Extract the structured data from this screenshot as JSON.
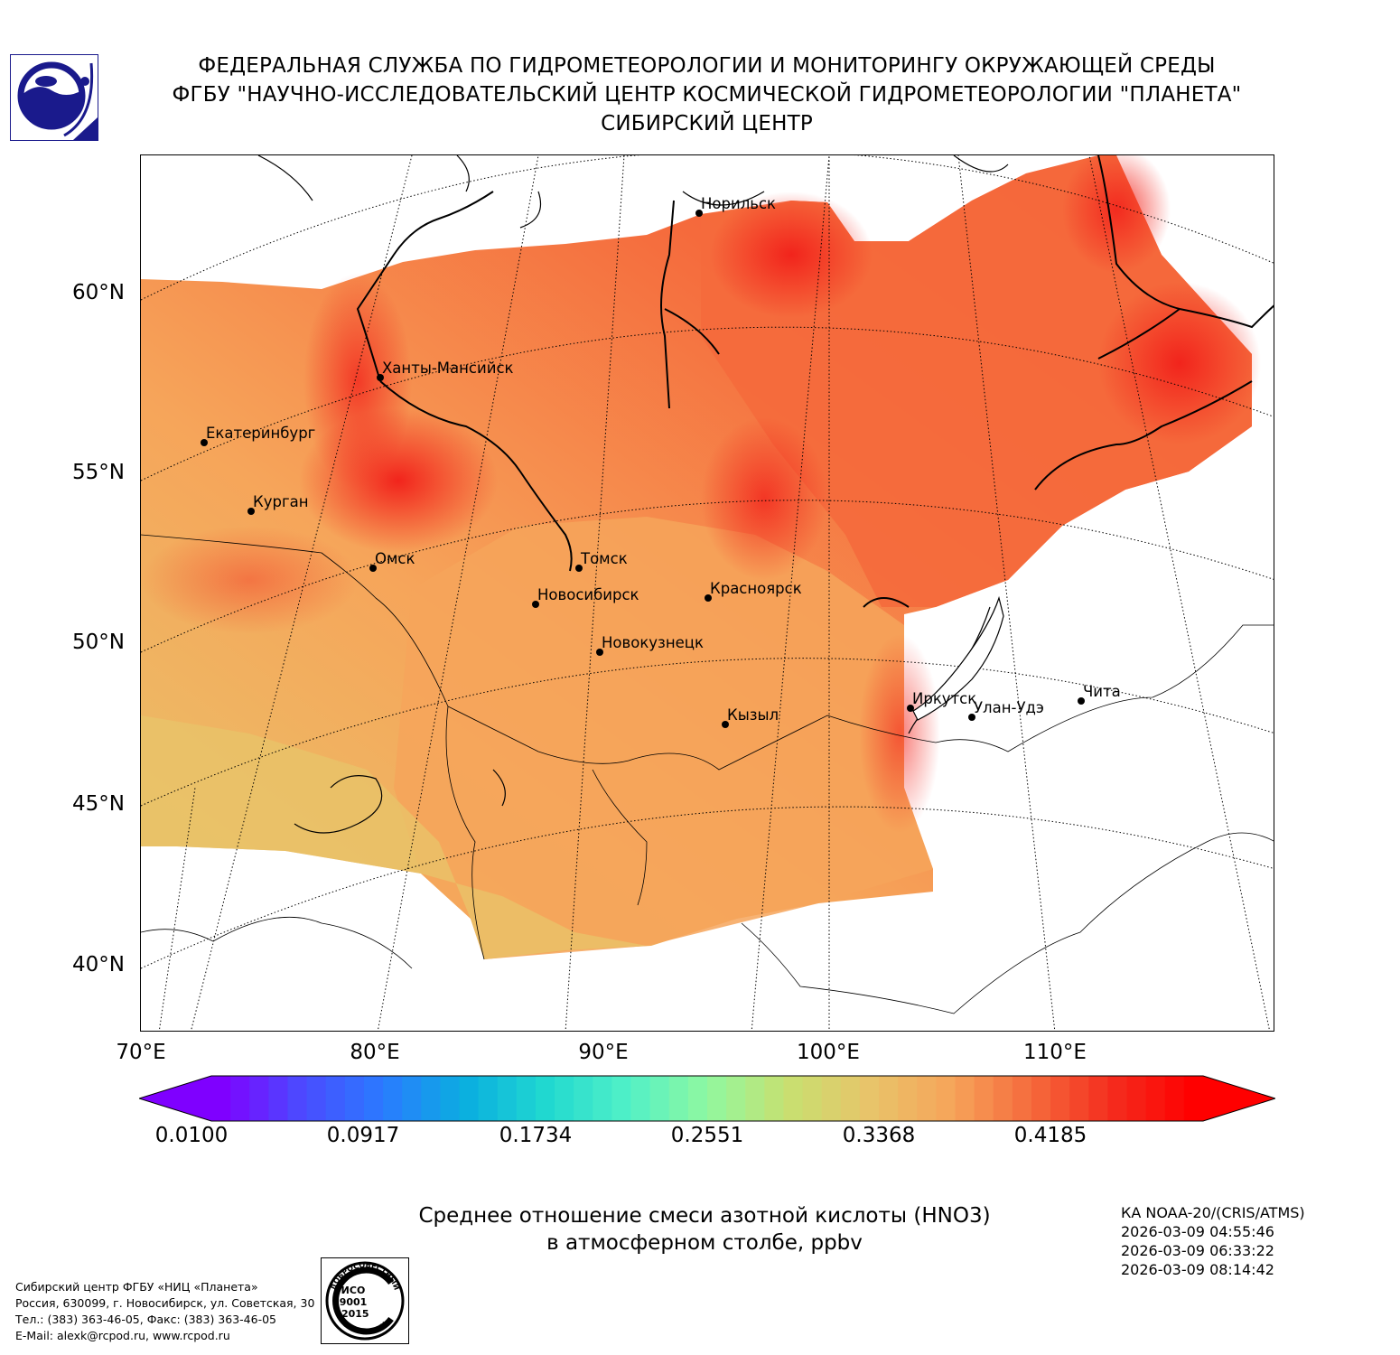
{
  "header": {
    "line1": "ФЕДЕРАЛЬНАЯ СЛУЖБА ПО ГИДРОМЕТЕОРОЛОГИИ И МОНИТОРИНГУ ОКРУЖАЮЩЕЙ СРЕДЫ",
    "line2": "ФГБУ \"НАУЧНО-ИССЛЕДОВАТЕЛЬСКИЙ ЦЕНТР КОСМИЧЕСКОЙ ГИДРОМЕТЕОРОЛОГИИ \"ПЛАНЕТА\"",
    "line3": "СИБИРСКИЙ ЦЕНТР"
  },
  "map": {
    "lat_labels": [
      "60°N",
      "55°N",
      "50°N",
      "45°N",
      "40°N"
    ],
    "lon_labels": [
      "70°E",
      "80°E",
      "90°E",
      "100°E",
      "110°E"
    ],
    "cities": [
      {
        "name": "Норильск"
      },
      {
        "name": "Ханты-Мансийск"
      },
      {
        "name": "Екатеринбург"
      },
      {
        "name": "Курган"
      },
      {
        "name": "Омск"
      },
      {
        "name": "Томск"
      },
      {
        "name": "Новосибирск"
      },
      {
        "name": "Красноярск"
      },
      {
        "name": "Новокузнецк"
      },
      {
        "name": "Иркутск"
      },
      {
        "name": "Улан-Удэ"
      },
      {
        "name": "Чита"
      },
      {
        "name": "Кызыл"
      }
    ],
    "colors": {
      "low": "#e8c46a",
      "mid": "#f6a55a",
      "high": "#f56a3c",
      "max": "#f2241c"
    }
  },
  "colorbar": {
    "ticks": [
      "0.0100",
      "0.0917",
      "0.1734",
      "0.2551",
      "0.3368",
      "0.4185"
    ],
    "min": 0.01,
    "max": 0.5
  },
  "footer": {
    "title_line1": "Среднее отношение смеси азотной кислоты (HNO3)",
    "title_line2": "в атмосферном столбе, ppbv",
    "meta": [
      "КА NOAA-20/(CRIS/ATMS)",
      "2026-03-09 04:55:46",
      "2026-03-09 06:33:22",
      "2026-03-09 08:14:42"
    ],
    "address": [
      "Сибирский центр ФГБУ «НИЦ «Планета»",
      "Россия, 630099, г. Новосибирск, ул. Советская, 30",
      "Тел.: (383) 363-46-05, Факс: (383) 363-46-05",
      "E-Mail: alexk@rcpod.ru, www.rcpod.ru"
    ],
    "iso_stamp": {
      "top": "ДОБРОСОВЕСТНЫЙ",
      "iso": "ИСО",
      "num": "9001",
      "year": "-2015",
      "bottom": "ПОСТАВЩИК"
    }
  }
}
